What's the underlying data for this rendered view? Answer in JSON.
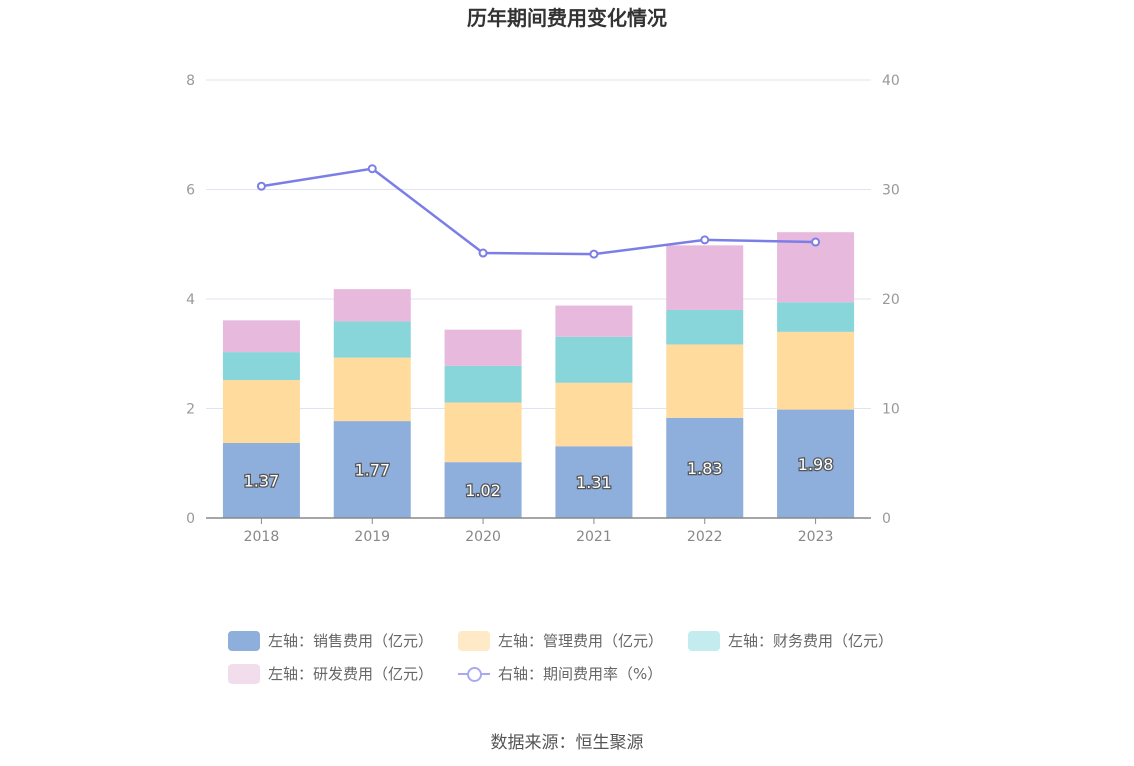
{
  "chart_data": {
    "type": "bar",
    "title": "历年期间费用变化情况",
    "categories": [
      "2018",
      "2019",
      "2020",
      "2021",
      "2022",
      "2023"
    ],
    "series": [
      {
        "name": "左轴：销售费用（亿元）",
        "axis": "left",
        "color": "#8eaedb",
        "values": [
          1.37,
          1.77,
          1.02,
          1.31,
          1.83,
          1.98
        ]
      },
      {
        "name": "左轴：管理费用（亿元）",
        "axis": "left",
        "color": "#ffdb9e",
        "values": [
          1.15,
          1.16,
          1.09,
          1.16,
          1.34,
          1.42
        ]
      },
      {
        "name": "左轴：财务费用（亿元）",
        "axis": "left",
        "color": "#88d5da",
        "values": [
          0.51,
          0.66,
          0.67,
          0.84,
          0.63,
          0.54
        ]
      },
      {
        "name": "左轴：研发费用（亿元）",
        "axis": "left",
        "color": "#e7b9dc",
        "values": [
          0.58,
          0.59,
          0.66,
          0.57,
          1.18,
          1.28
        ]
      },
      {
        "name": "右轴：期间费用率（%）",
        "axis": "right",
        "type": "line",
        "color": "#7b7ee6",
        "values": [
          30.3,
          31.9,
          24.2,
          24.1,
          25.4,
          25.2
        ]
      }
    ],
    "ylim_left": [
      0,
      8
    ],
    "yticks_left": [
      "0",
      "2",
      "4",
      "6",
      "8"
    ],
    "ylim_right": [
      0,
      40
    ],
    "yticks_right": [
      "0",
      "10",
      "20",
      "30",
      "40"
    ],
    "bar_labels": [
      "1.37",
      "1.77",
      "1.02",
      "1.31",
      "1.83",
      "1.98"
    ],
    "grid": true,
    "legend_position": "bottom"
  },
  "legend": {
    "items": [
      {
        "label": "左轴：销售费用（亿元）",
        "color": "#8eaedb",
        "kind": "box"
      },
      {
        "label": "左轴：管理费用（亿元）",
        "color": "#ffe9c7",
        "kind": "box"
      },
      {
        "label": "左轴：财务费用（亿元）",
        "color": "#c4ecee",
        "kind": "box"
      },
      {
        "label": "左轴：研发费用（亿元）",
        "color": "#f2ddec",
        "kind": "box"
      },
      {
        "label": "右轴：期间费用率（%）",
        "color": "#a9a9ef",
        "kind": "line"
      }
    ]
  },
  "source": "数据来源：恒生聚源"
}
